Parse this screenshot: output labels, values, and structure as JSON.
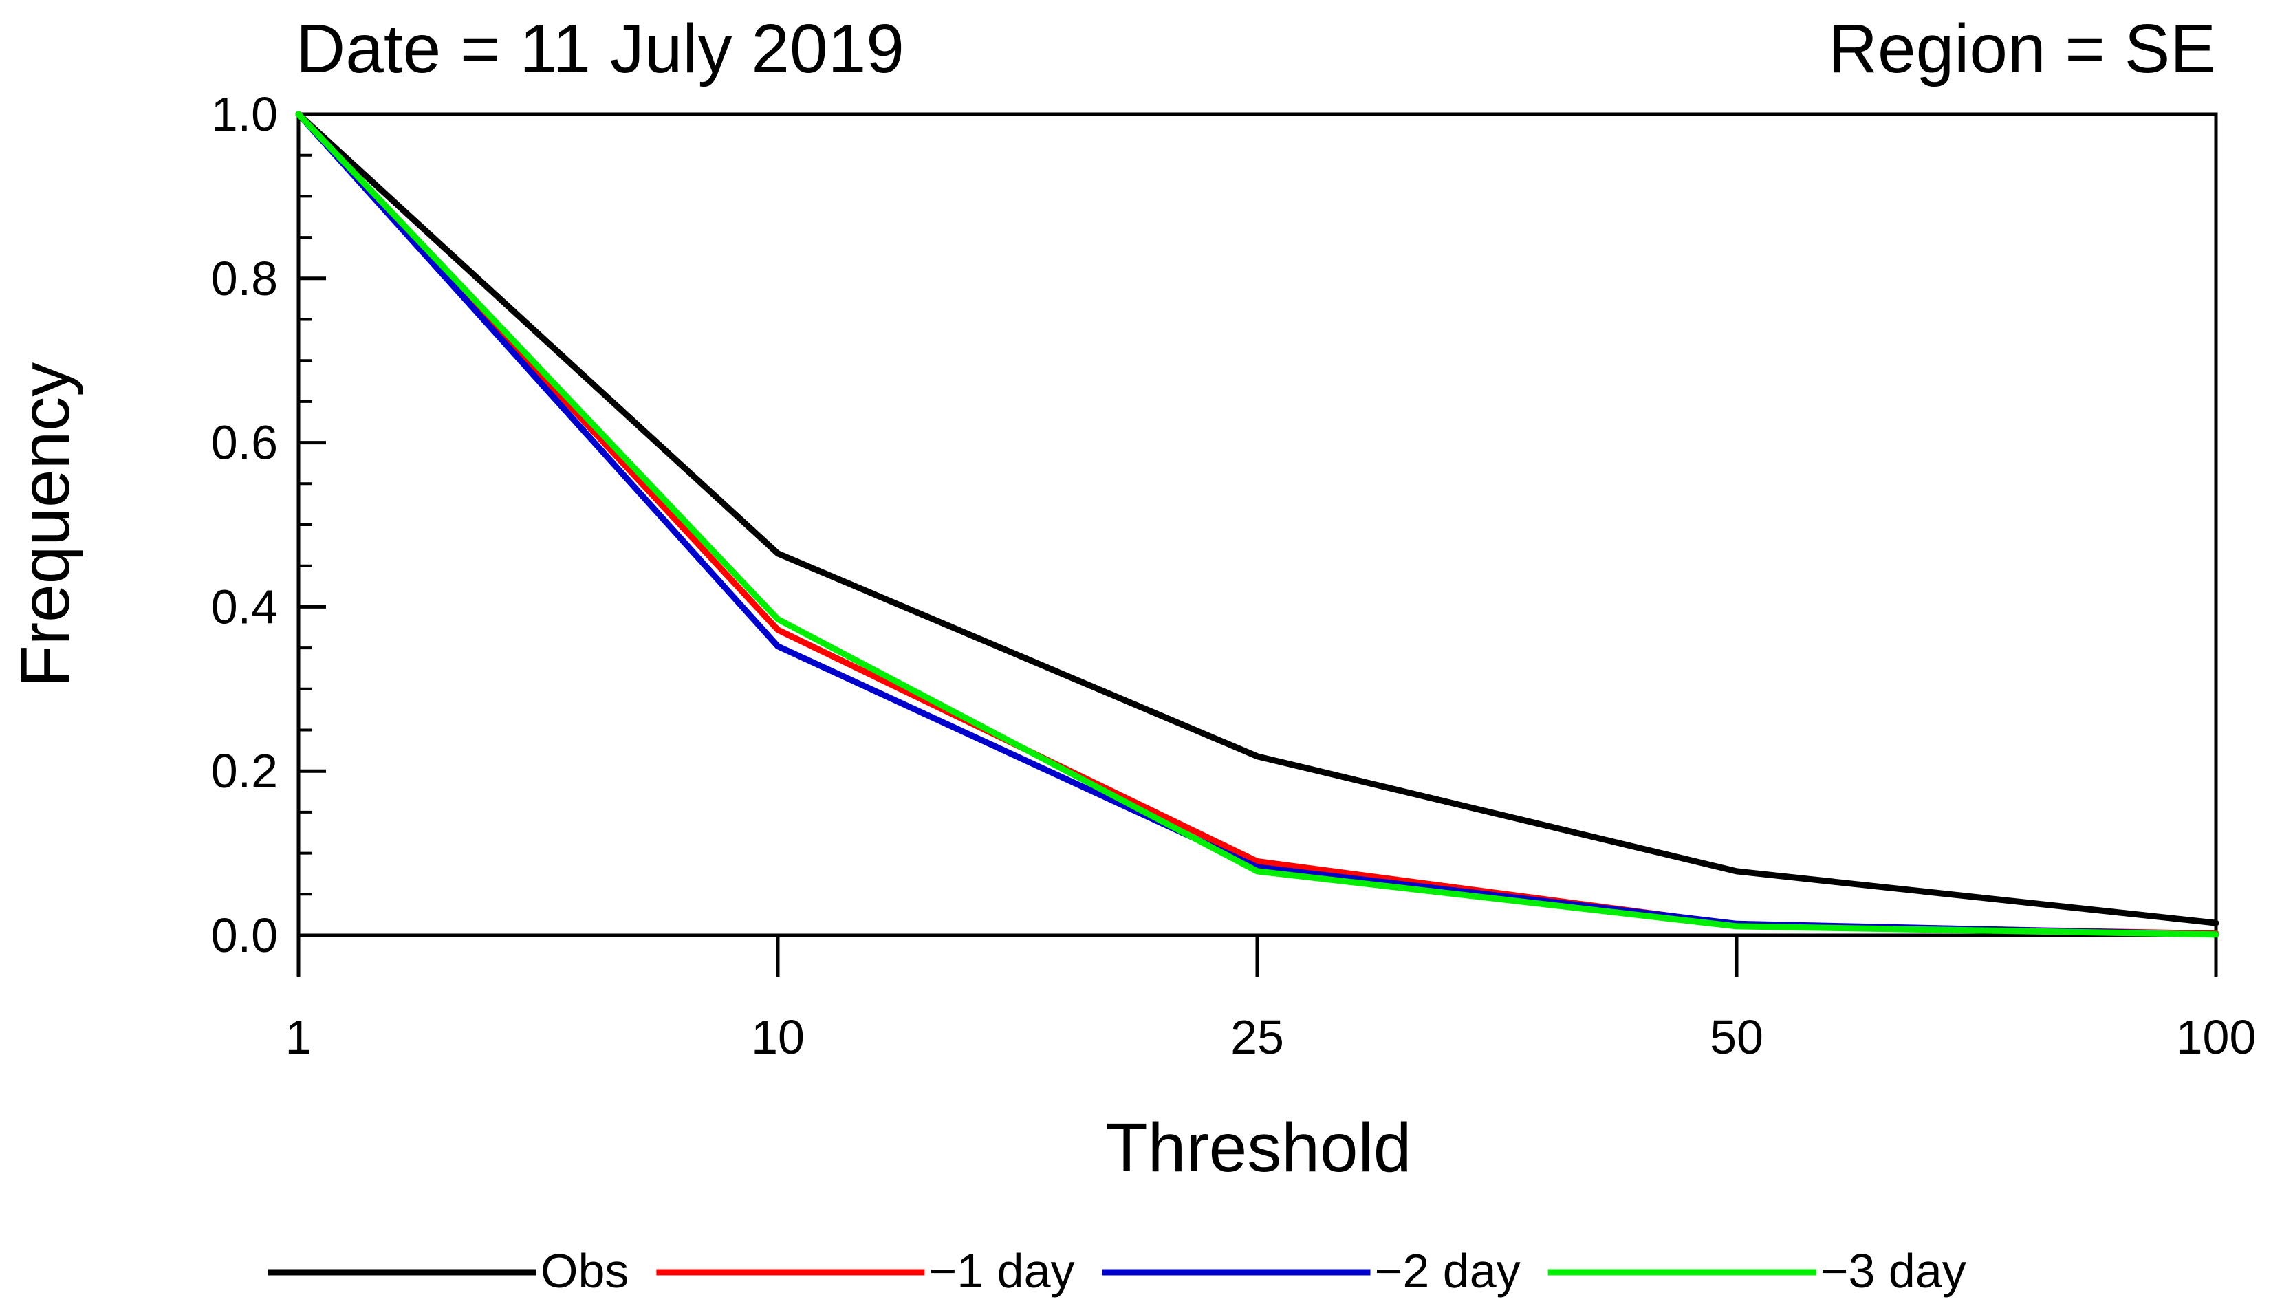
{
  "chart_data": {
    "type": "line",
    "title_left": "Date = 11 July 2019",
    "title_right": "Region = SE",
    "xlabel": "Threshold",
    "ylabel": "Frequency",
    "categories": [
      "1",
      "10",
      "25",
      "50",
      "100"
    ],
    "ylim": [
      0.0,
      1.0
    ],
    "yticks": [
      "0.0",
      "0.2",
      "0.4",
      "0.6",
      "0.8",
      "1.0"
    ],
    "grid": false,
    "legend_position": "bottom",
    "series": [
      {
        "name": "Obs",
        "color": "#000000",
        "values": [
          1.0,
          0.465,
          0.218,
          0.078,
          0.015
        ]
      },
      {
        "name": "−1 day",
        "color": "#ff0000",
        "values": [
          1.0,
          0.372,
          0.09,
          0.013,
          0.002
        ]
      },
      {
        "name": "−2 day",
        "color": "#0000cc",
        "values": [
          1.0,
          0.352,
          0.083,
          0.014,
          0.001
        ]
      },
      {
        "name": "−3 day",
        "color": "#00ee00",
        "values": [
          1.0,
          0.385,
          0.078,
          0.011,
          0.001
        ]
      }
    ]
  }
}
